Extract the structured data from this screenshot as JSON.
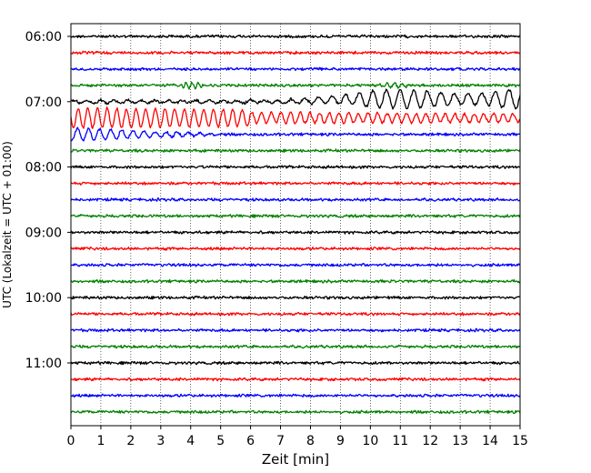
{
  "chart_data": {
    "type": "line",
    "subtype": "helicorder",
    "title": "",
    "xlabel": "Zeit  [min]",
    "ylabel": "UTC (Lokalzeit = UTC + 01:00)",
    "xlim": [
      0,
      15
    ],
    "x_ticks": [
      0,
      1,
      2,
      3,
      4,
      5,
      6,
      7,
      8,
      9,
      10,
      11,
      12,
      13,
      14,
      15
    ],
    "x_grid": true,
    "trace_interval_min": 15,
    "trace_colors": [
      "#000000",
      "#ff0000",
      "#0000ff",
      "#008000"
    ],
    "y_ticks": [
      "06:00",
      "07:00",
      "08:00",
      "09:00",
      "10:00",
      "11:00"
    ],
    "traces": [
      {
        "start": "06:00",
        "max_amplitude": "low"
      },
      {
        "start": "06:15",
        "max_amplitude": "low"
      },
      {
        "start": "06:30",
        "max_amplitude": "low"
      },
      {
        "start": "06:45",
        "max_amplitude": "low",
        "note": "small bursts near 4.0 and 10.8 min"
      },
      {
        "start": "07:00",
        "max_amplitude": "high",
        "note": "surface-wave oscillations growing from ~7 min, largest near 14.6 min"
      },
      {
        "start": "07:15",
        "max_amplitude": "high",
        "note": "large oscillations from 0 to ~6 min, continuing with smaller amplitude to 15 min"
      },
      {
        "start": "07:30",
        "max_amplitude": "medium",
        "note": "decaying oscillations 0–5 min"
      },
      {
        "start": "07:45",
        "max_amplitude": "low"
      },
      {
        "start": "08:00",
        "max_amplitude": "low"
      },
      {
        "start": "08:15",
        "max_amplitude": "low"
      },
      {
        "start": "08:30",
        "max_amplitude": "low"
      },
      {
        "start": "08:45",
        "max_amplitude": "low"
      },
      {
        "start": "09:00",
        "max_amplitude": "low"
      },
      {
        "start": "09:15",
        "max_amplitude": "low"
      },
      {
        "start": "09:30",
        "max_amplitude": "low"
      },
      {
        "start": "09:45",
        "max_amplitude": "low"
      },
      {
        "start": "10:00",
        "max_amplitude": "low"
      },
      {
        "start": "10:15",
        "max_amplitude": "low"
      },
      {
        "start": "10:30",
        "max_amplitude": "low"
      },
      {
        "start": "10:45",
        "max_amplitude": "low"
      },
      {
        "start": "11:00",
        "max_amplitude": "low"
      },
      {
        "start": "11:15",
        "max_amplitude": "low"
      },
      {
        "start": "11:30",
        "max_amplitude": "low"
      },
      {
        "start": "11:45",
        "max_amplitude": "low"
      }
    ]
  }
}
